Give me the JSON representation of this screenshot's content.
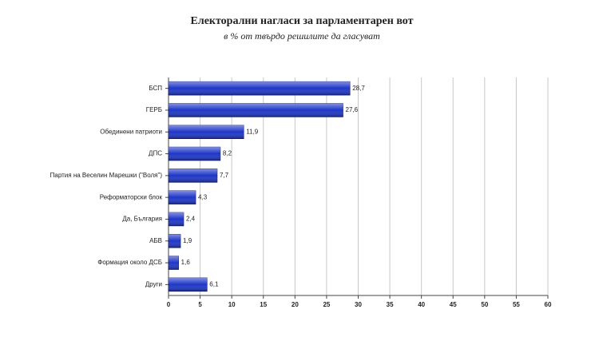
{
  "chart_data": {
    "type": "bar",
    "orientation": "horizontal",
    "title": "Електорални нагласи за парламентарен вот",
    "subtitle": "в % от твърдо решилите да гласуват",
    "categories": [
      "БСП",
      "ГЕРБ",
      "Обединени патриоти",
      "ДПС",
      "Партия на Веселин Марешки (\"Воля\")",
      "Реформаторски блок",
      "Да, България",
      "АБВ",
      "Формация около ДСБ",
      "Други"
    ],
    "values": [
      28.7,
      27.6,
      11.9,
      8.2,
      7.7,
      4.3,
      2.4,
      1.9,
      1.6,
      6.1
    ],
    "value_labels": [
      "28,7",
      "27,6",
      "11,9",
      "8,2",
      "7,7",
      "4,3",
      "2,4",
      "1,9",
      "1,6",
      "6,1"
    ],
    "color": "#1e36c8",
    "xlim": [
      0,
      60
    ],
    "xticks": [
      0,
      5,
      10,
      15,
      20,
      25,
      30,
      35,
      40,
      45,
      50,
      55,
      60
    ],
    "grid": true
  }
}
